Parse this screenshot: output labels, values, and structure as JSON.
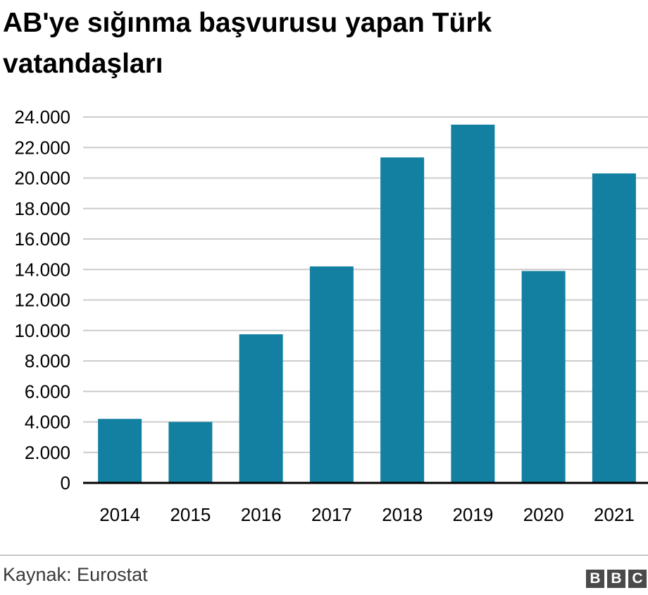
{
  "title": "AB'ye sığınma başvurusu yapan Türk vatandaşları",
  "source": "Kaynak: Eurostat",
  "logo": [
    "B",
    "B",
    "C"
  ],
  "colors": {
    "bar": "#1380A1",
    "grid": "#cccccc",
    "axis": "#000000"
  },
  "chart_data": {
    "type": "bar",
    "title": "AB'ye sığınma başvurusu yapan Türk vatandaşları",
    "categories": [
      "2014",
      "2015",
      "2016",
      "2017",
      "2018",
      "2019",
      "2020",
      "2021"
    ],
    "values": [
      4200,
      4000,
      9750,
      14200,
      21350,
      23500,
      13900,
      20300
    ],
    "ylim": [
      0,
      24000
    ],
    "yticks": [
      0,
      2000,
      4000,
      6000,
      8000,
      10000,
      12000,
      14000,
      16000,
      18000,
      20000,
      22000,
      24000
    ],
    "ytick_labels": [
      "0",
      "2.000",
      "4.000",
      "6.000",
      "8.000",
      "10.000",
      "12.000",
      "14.000",
      "16.000",
      "18.000",
      "20.000",
      "22.000",
      "24.000"
    ],
    "xlabel": "",
    "ylabel": "",
    "grid": true
  }
}
